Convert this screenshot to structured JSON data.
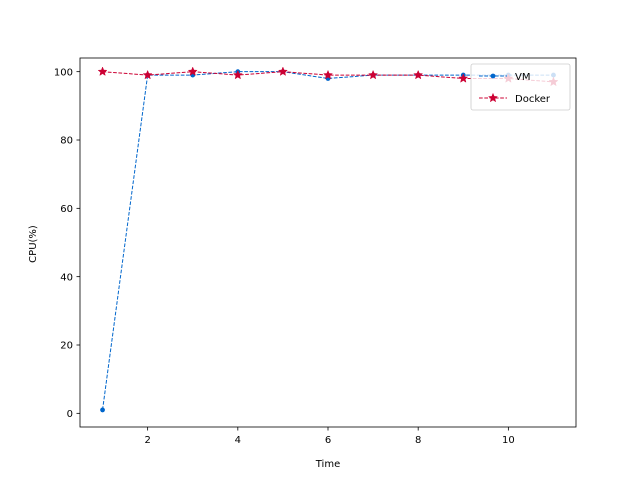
{
  "chart_data": {
    "type": "line",
    "title": "",
    "xlabel": "Time",
    "ylabel": "CPU(%)",
    "xlim": [
      0.5,
      11.5
    ],
    "ylim": [
      -4,
      104
    ],
    "xticks": [
      2,
      4,
      6,
      8,
      10
    ],
    "yticks": [
      0,
      20,
      40,
      60,
      80,
      100
    ],
    "grid": false,
    "legend_position": "top-right",
    "x": [
      1,
      2,
      3,
      4,
      5,
      6,
      7,
      8,
      9,
      10,
      11
    ],
    "series": [
      {
        "name": "VM",
        "color": "#0066cc",
        "marker": "dot",
        "line_style": "dashed",
        "values": [
          1,
          99,
          99,
          100,
          100,
          98,
          99,
          99,
          99,
          99,
          99
        ]
      },
      {
        "name": "Docker",
        "color": "#cc0033",
        "marker": "star",
        "line_style": "dashed",
        "values": [
          100,
          99,
          100,
          99,
          100,
          99,
          99,
          99,
          98,
          98,
          97
        ]
      }
    ]
  }
}
